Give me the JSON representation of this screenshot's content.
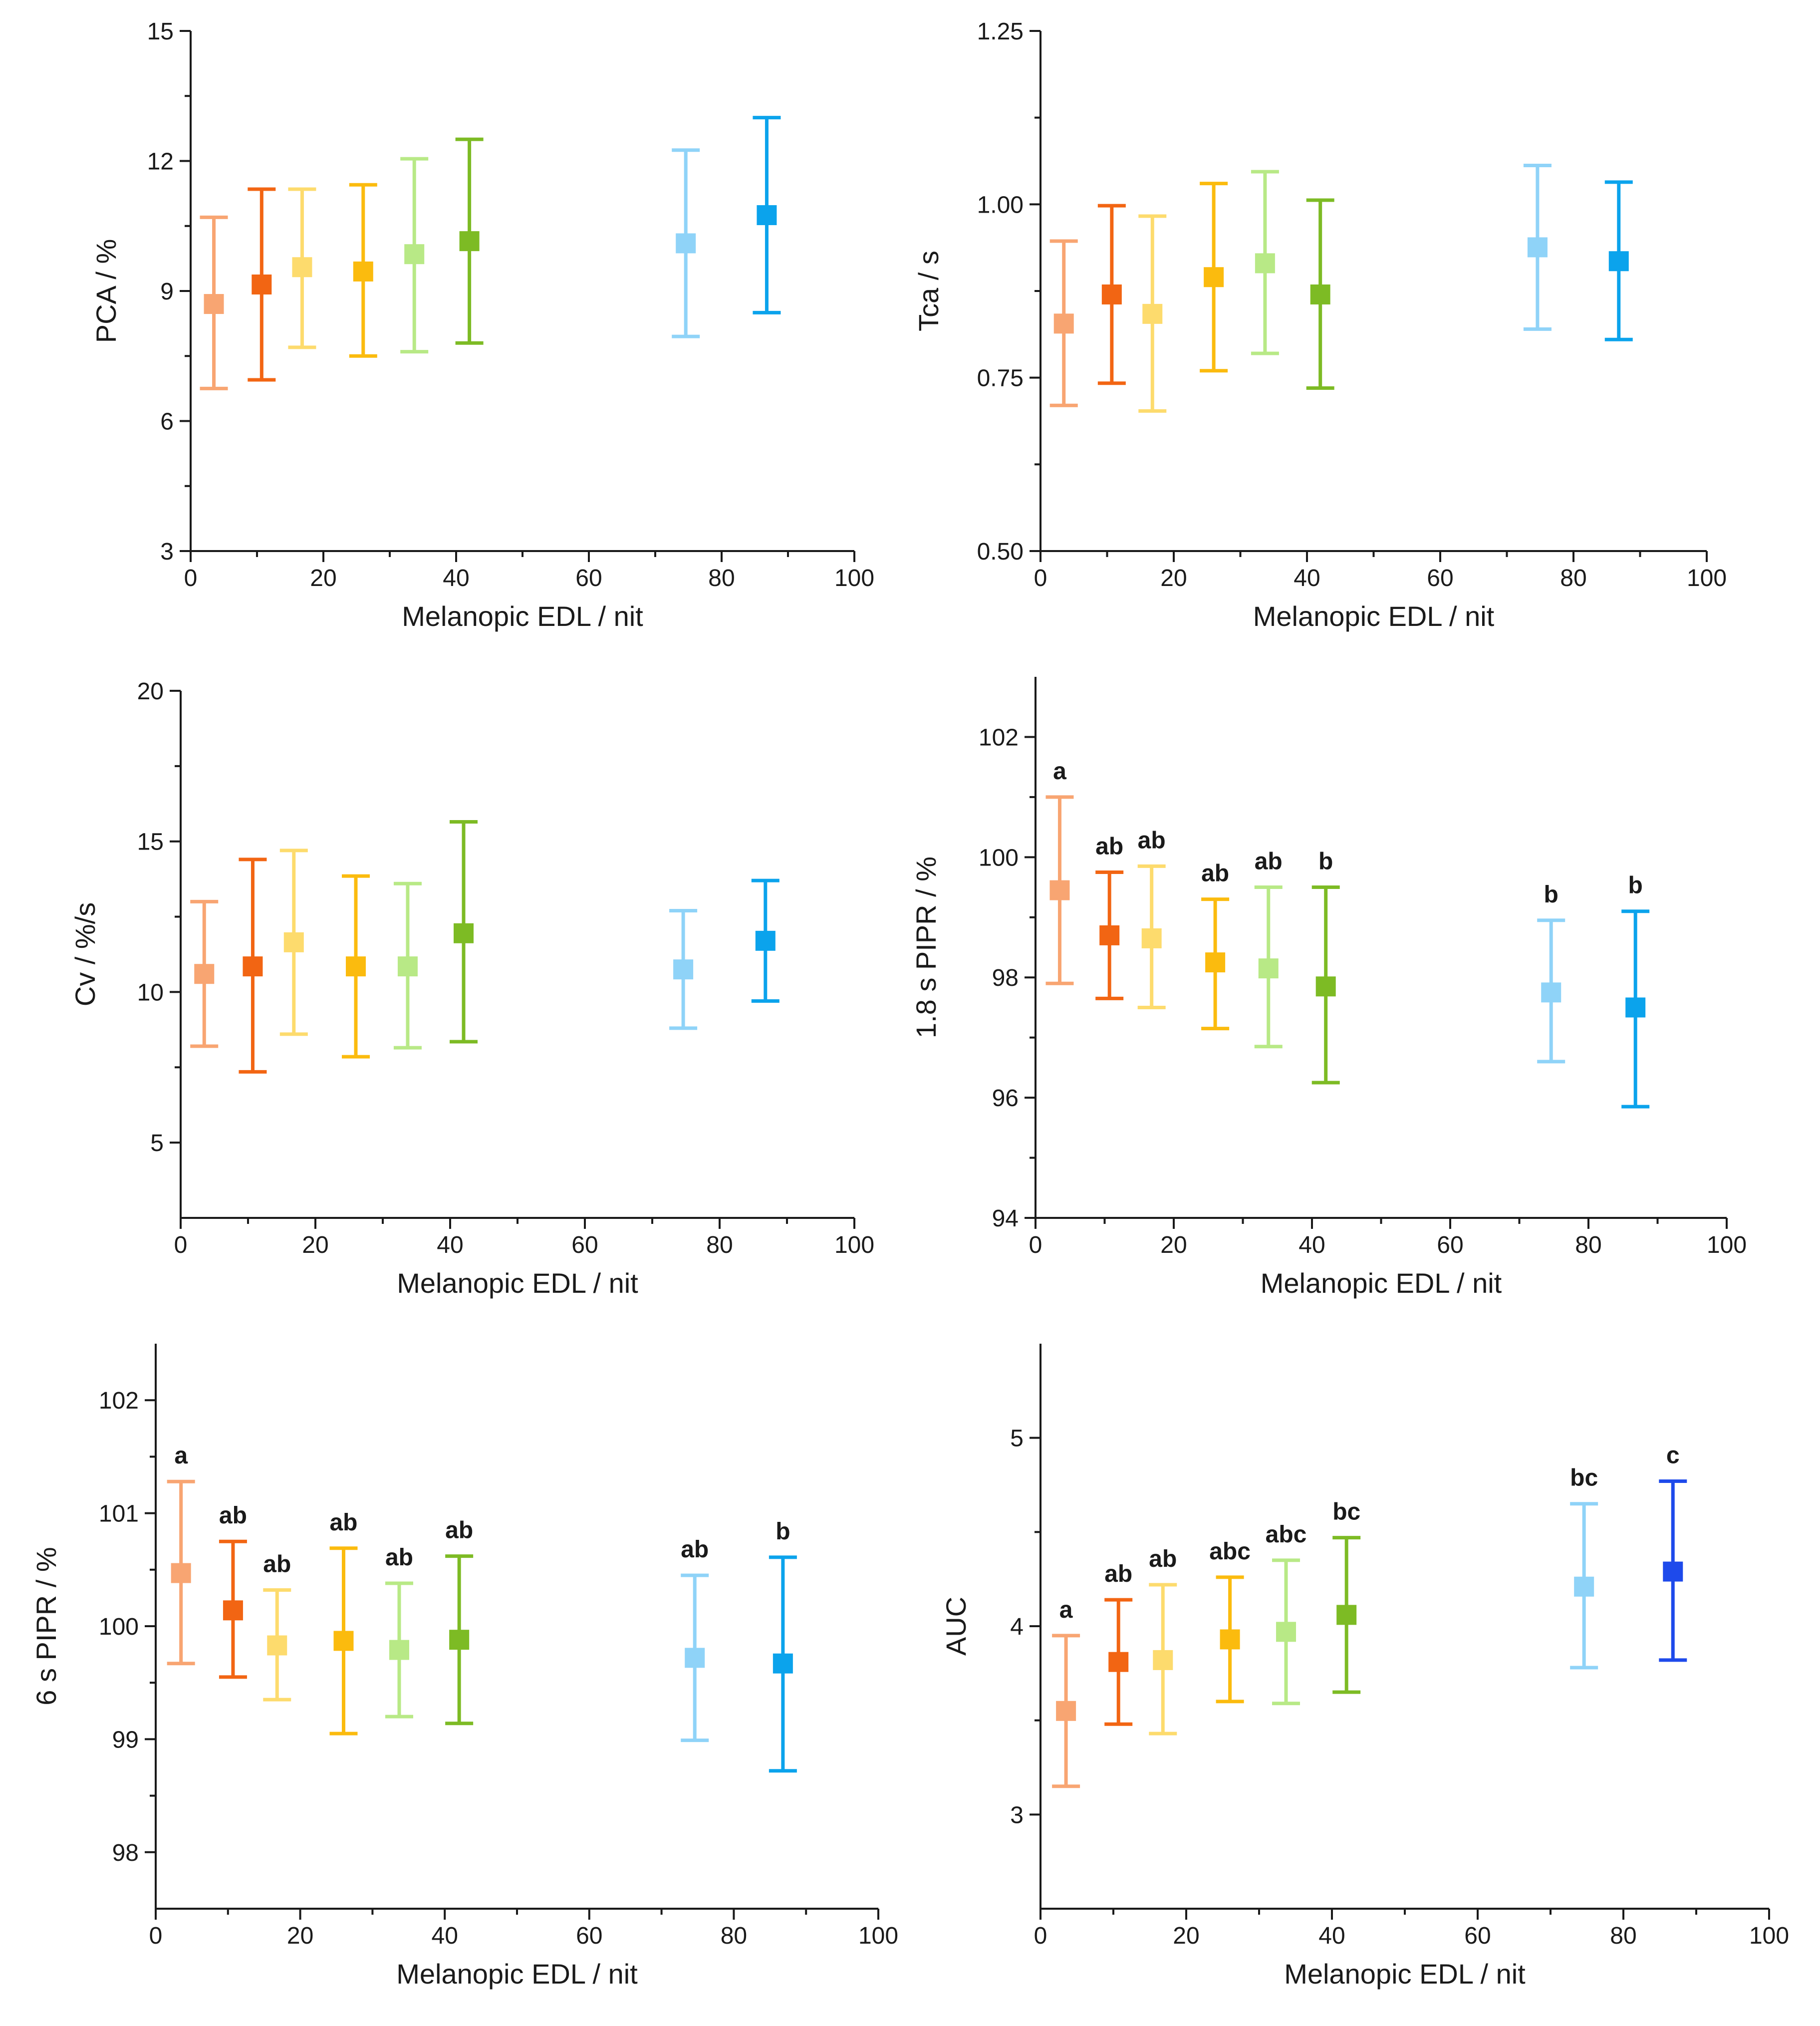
{
  "chart_data": [
    {
      "type": "scatter",
      "id": "pca",
      "ylabel": "PCA / %",
      "xlabel": "Melanopic EDL / nit",
      "xlim": [
        0,
        100
      ],
      "ylim": [
        3,
        15
      ],
      "xticks": [
        0,
        20,
        40,
        60,
        80,
        100
      ],
      "yticks": [
        3,
        6,
        9,
        12,
        15
      ],
      "points": [
        {
          "x": 3.5,
          "y": 8.7,
          "low": 6.75,
          "high": 10.7,
          "color": "#F8A572"
        },
        {
          "x": 10.7,
          "y": 9.15,
          "low": 6.95,
          "high": 11.35,
          "color": "#F26513"
        },
        {
          "x": 16.8,
          "y": 9.55,
          "low": 7.7,
          "high": 11.35,
          "color": "#FDDB6D"
        },
        {
          "x": 26.0,
          "y": 9.45,
          "low": 7.5,
          "high": 11.45,
          "color": "#FBBB0E"
        },
        {
          "x": 33.7,
          "y": 9.85,
          "low": 7.6,
          "high": 12.05,
          "color": "#B8E986"
        },
        {
          "x": 42.0,
          "y": 10.15,
          "low": 7.8,
          "high": 12.5,
          "color": "#7DBB24"
        },
        {
          "x": 74.6,
          "y": 10.1,
          "low": 7.95,
          "high": 12.25,
          "color": "#8FD3F8"
        },
        {
          "x": 86.8,
          "y": 10.75,
          "low": 8.5,
          "high": 13.0,
          "color": "#0BA3EC"
        }
      ]
    },
    {
      "type": "scatter",
      "id": "tca",
      "ylabel": "Tca / s",
      "xlabel": "Melanopic EDL / nit",
      "xlim": [
        0,
        100
      ],
      "ylim": [
        0.5,
        1.25
      ],
      "xticks": [
        0,
        20,
        40,
        60,
        80,
        100
      ],
      "yticks": [
        0.5,
        0.75,
        1.0,
        1.25
      ],
      "ytick_labels": [
        "0.50",
        "0.75",
        "1.00",
        "1.25"
      ],
      "points": [
        {
          "x": 3.5,
          "y": 0.828,
          "low": 0.71,
          "high": 0.947,
          "color": "#F8A572"
        },
        {
          "x": 10.7,
          "y": 0.87,
          "low": 0.742,
          "high": 0.998,
          "color": "#F26513"
        },
        {
          "x": 16.8,
          "y": 0.842,
          "low": 0.702,
          "high": 0.983,
          "color": "#FDDB6D"
        },
        {
          "x": 26.0,
          "y": 0.895,
          "low": 0.76,
          "high": 1.03,
          "color": "#FBBB0E"
        },
        {
          "x": 33.7,
          "y": 0.915,
          "low": 0.785,
          "high": 1.047,
          "color": "#B8E986"
        },
        {
          "x": 42.0,
          "y": 0.87,
          "low": 0.735,
          "high": 1.006,
          "color": "#7DBB24"
        },
        {
          "x": 74.6,
          "y": 0.938,
          "low": 0.82,
          "high": 1.056,
          "color": "#8FD3F8"
        },
        {
          "x": 86.8,
          "y": 0.918,
          "low": 0.805,
          "high": 1.032,
          "color": "#0BA3EC"
        }
      ]
    },
    {
      "type": "scatter",
      "id": "cv",
      "ylabel": "Cv / %/s",
      "xlabel": "Melanopic EDL / nit",
      "xlim": [
        0,
        100
      ],
      "ylim": [
        2.5,
        20
      ],
      "xticks": [
        0,
        20,
        40,
        60,
        80,
        100
      ],
      "yticks": [
        5,
        10,
        15,
        20
      ],
      "points": [
        {
          "x": 3.5,
          "y": 10.6,
          "low": 8.2,
          "high": 13.0,
          "color": "#F8A572"
        },
        {
          "x": 10.7,
          "y": 10.85,
          "low": 7.35,
          "high": 14.4,
          "color": "#F26513"
        },
        {
          "x": 16.8,
          "y": 11.65,
          "low": 8.6,
          "high": 14.7,
          "color": "#FDDB6D"
        },
        {
          "x": 26.0,
          "y": 10.85,
          "low": 7.85,
          "high": 13.85,
          "color": "#FBBB0E"
        },
        {
          "x": 33.7,
          "y": 10.85,
          "low": 8.15,
          "high": 13.6,
          "color": "#B8E986"
        },
        {
          "x": 42.0,
          "y": 11.95,
          "low": 8.35,
          "high": 15.65,
          "color": "#7DBB24"
        },
        {
          "x": 74.6,
          "y": 10.75,
          "low": 8.8,
          "high": 12.7,
          "color": "#8FD3F8"
        },
        {
          "x": 86.8,
          "y": 11.7,
          "low": 9.7,
          "high": 13.7,
          "color": "#0BA3EC"
        }
      ]
    },
    {
      "type": "scatter",
      "id": "pipr18",
      "ylabel": "1.8 s PIPR / %",
      "xlabel": "Melanopic EDL / nit",
      "xlim": [
        0,
        100
      ],
      "ylim": [
        94,
        103
      ],
      "xticks": [
        0,
        20,
        40,
        60,
        80,
        100
      ],
      "yticks": [
        94,
        96,
        98,
        100,
        102
      ],
      "points": [
        {
          "x": 3.5,
          "y": 99.45,
          "low": 97.9,
          "high": 101.0,
          "color": "#F8A572",
          "label": "a"
        },
        {
          "x": 10.7,
          "y": 98.7,
          "low": 97.65,
          "high": 99.75,
          "color": "#F26513",
          "label": "ab"
        },
        {
          "x": 16.8,
          "y": 98.65,
          "low": 97.5,
          "high": 99.85,
          "color": "#FDDB6D",
          "label": "ab"
        },
        {
          "x": 26.0,
          "y": 98.25,
          "low": 97.15,
          "high": 99.3,
          "color": "#FBBB0E",
          "label": "ab"
        },
        {
          "x": 33.7,
          "y": 98.15,
          "low": 96.85,
          "high": 99.5,
          "color": "#B8E986",
          "label": "ab"
        },
        {
          "x": 42.0,
          "y": 97.85,
          "low": 96.25,
          "high": 99.5,
          "color": "#7DBB24",
          "label": "b"
        },
        {
          "x": 74.6,
          "y": 97.75,
          "low": 96.6,
          "high": 98.95,
          "color": "#8FD3F8",
          "label": "b"
        },
        {
          "x": 86.8,
          "y": 97.5,
          "low": 95.85,
          "high": 99.1,
          "color": "#0BA3EC",
          "label": "b"
        }
      ]
    },
    {
      "type": "scatter",
      "id": "pipr6",
      "ylabel": "6 s PIPR / %",
      "xlabel": "Melanopic EDL / nit",
      "xlim": [
        0,
        100
      ],
      "ylim": [
        97.5,
        102.5
      ],
      "xticks": [
        0,
        20,
        40,
        60,
        80,
        100
      ],
      "yticks": [
        98,
        99,
        100,
        101,
        102
      ],
      "points": [
        {
          "x": 3.5,
          "y": 100.47,
          "low": 99.67,
          "high": 101.28,
          "color": "#F8A572",
          "label": "a"
        },
        {
          "x": 10.7,
          "y": 100.14,
          "low": 99.55,
          "high": 100.75,
          "color": "#F26513",
          "label": "ab"
        },
        {
          "x": 16.8,
          "y": 99.83,
          "low": 99.35,
          "high": 100.32,
          "color": "#FDDB6D",
          "label": "ab"
        },
        {
          "x": 26.0,
          "y": 99.87,
          "low": 99.05,
          "high": 100.69,
          "color": "#FBBB0E",
          "label": "ab"
        },
        {
          "x": 33.7,
          "y": 99.79,
          "low": 99.2,
          "high": 100.38,
          "color": "#B8E986",
          "label": "ab"
        },
        {
          "x": 42.0,
          "y": 99.88,
          "low": 99.14,
          "high": 100.62,
          "color": "#7DBB24",
          "label": "ab"
        },
        {
          "x": 74.6,
          "y": 99.72,
          "low": 98.99,
          "high": 100.45,
          "color": "#8FD3F8",
          "label": "ab"
        },
        {
          "x": 86.8,
          "y": 99.67,
          "low": 98.72,
          "high": 100.61,
          "color": "#0BA3EC",
          "label": "b"
        }
      ]
    },
    {
      "type": "scatter",
      "id": "auc",
      "ylabel": "AUC",
      "xlabel": "Melanopic EDL / nit",
      "xlim": [
        0,
        100
      ],
      "ylim": [
        2.5,
        5.5
      ],
      "xticks": [
        0,
        20,
        40,
        60,
        80,
        100
      ],
      "yticks": [
        3,
        4,
        5
      ],
      "points": [
        {
          "x": 3.5,
          "y": 3.55,
          "low": 3.15,
          "high": 3.95,
          "color": "#F8A572",
          "label": "a"
        },
        {
          "x": 10.7,
          "y": 3.81,
          "low": 3.48,
          "high": 4.14,
          "color": "#F26513",
          "label": "ab"
        },
        {
          "x": 16.8,
          "y": 3.82,
          "low": 3.43,
          "high": 4.22,
          "color": "#FDDB6D",
          "label": "ab"
        },
        {
          "x": 26.0,
          "y": 3.93,
          "low": 3.6,
          "high": 4.26,
          "color": "#FBBB0E",
          "label": "abc"
        },
        {
          "x": 33.7,
          "y": 3.97,
          "low": 3.59,
          "high": 4.35,
          "color": "#B8E986",
          "label": "abc"
        },
        {
          "x": 42.0,
          "y": 4.06,
          "low": 3.65,
          "high": 4.47,
          "color": "#7DBB24",
          "label": "bc"
        },
        {
          "x": 74.6,
          "y": 4.21,
          "low": 3.78,
          "high": 4.65,
          "color": "#8FD3F8",
          "label": "bc"
        },
        {
          "x": 86.8,
          "y": 4.29,
          "low": 3.82,
          "high": 4.77,
          "color": "#1E4AEB",
          "label": "c"
        }
      ]
    }
  ]
}
